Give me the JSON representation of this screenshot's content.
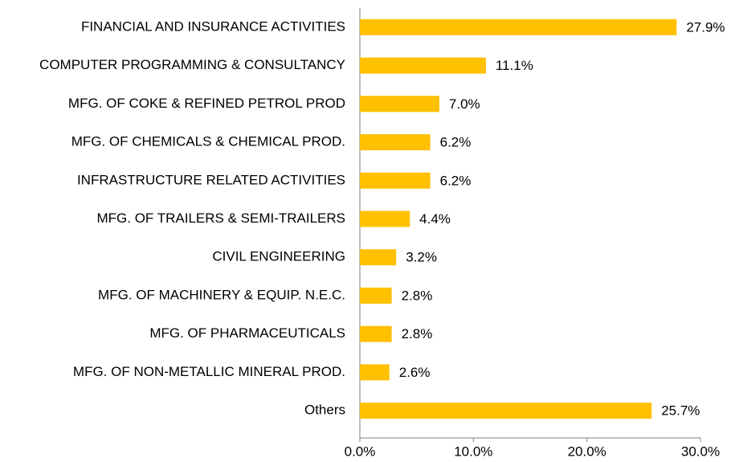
{
  "chart_data": {
    "type": "bar",
    "orientation": "horizontal",
    "categories": [
      "FINANCIAL AND INSURANCE ACTIVITIES",
      "COMPUTER PROGRAMMING & CONSULTANCY",
      "MFG. OF COKE & REFINED PETROL PROD",
      "MFG. OF CHEMICALS & CHEMICAL PROD.",
      "INFRASTRUCTURE RELATED ACTIVITIES",
      "MFG. OF TRAILERS & SEMI-TRAILERS",
      "CIVIL ENGINEERING",
      "MFG. OF MACHINERY & EQUIP. N.E.C.",
      "MFG. OF PHARMACEUTICALS",
      "MFG. OF NON-METALLIC MINERAL PROD.",
      "Others"
    ],
    "values": [
      27.9,
      11.1,
      7.0,
      6.2,
      6.2,
      4.4,
      3.2,
      2.8,
      2.8,
      2.6,
      25.7
    ],
    "value_labels": [
      "27.9%",
      "11.1%",
      "7.0%",
      "6.2%",
      "6.2%",
      "4.4%",
      "3.2%",
      "2.8%",
      "2.8%",
      "2.6%",
      "25.7%"
    ],
    "color": "#FFC000",
    "xlim": [
      0,
      30
    ],
    "xticks": [
      {
        "value": 0,
        "label": "0.0%"
      },
      {
        "value": 10,
        "label": "10.0%"
      },
      {
        "value": 20,
        "label": "20.0%"
      },
      {
        "value": 30,
        "label": "30.0%"
      }
    ],
    "grid": false
  }
}
